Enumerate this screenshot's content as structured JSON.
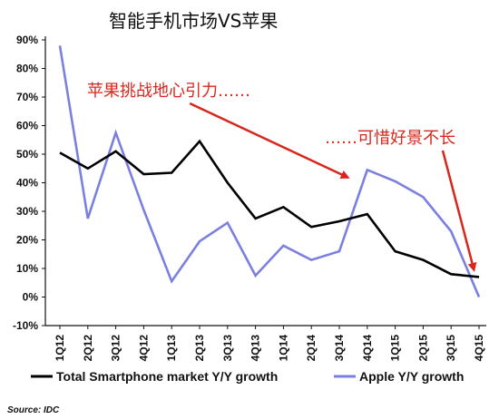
{
  "chart_data": {
    "type": "line",
    "title": "智能手机市场VS苹果",
    "categories": [
      "1Q12",
      "2Q12",
      "3Q12",
      "4Q12",
      "1Q13",
      "2Q13",
      "3Q13",
      "4Q13",
      "1Q14",
      "2Q14",
      "3Q14",
      "4Q14",
      "1Q15",
      "2Q15",
      "3Q15",
      "4Q15"
    ],
    "series": [
      {
        "name": "Total Smartphone market Y/Y growth",
        "color": "#000000",
        "values": [
          50.5,
          45,
          51,
          43,
          43.5,
          54.5,
          40,
          27.5,
          31.5,
          24.5,
          26.5,
          29,
          16,
          13,
          8,
          7
        ]
      },
      {
        "name": "Apple Y/Y growth",
        "color": "#7b7fe0",
        "values": [
          88,
          27.5,
          57.5,
          30.5,
          5.5,
          19.5,
          26,
          7.5,
          18,
          13,
          16,
          44.5,
          40.5,
          35,
          23,
          0
        ]
      }
    ],
    "ylim": [
      -10,
      90
    ],
    "yticks": [
      "-10%",
      "0%",
      "10%",
      "20%",
      "30%",
      "40%",
      "50%",
      "60%",
      "70%",
      "80%",
      "90%"
    ],
    "ytick_values": [
      -10,
      0,
      10,
      20,
      30,
      40,
      50,
      60,
      70,
      80,
      90
    ],
    "grid": false,
    "legend": "bottom",
    "annotations": [
      {
        "text": "苹果挑战地心引力……",
        "from_category": "1Q13",
        "to_category": "3Q14"
      },
      {
        "text": "……可惜好景不长",
        "to_category": "4Q15"
      }
    ],
    "source": "Source: IDC"
  }
}
